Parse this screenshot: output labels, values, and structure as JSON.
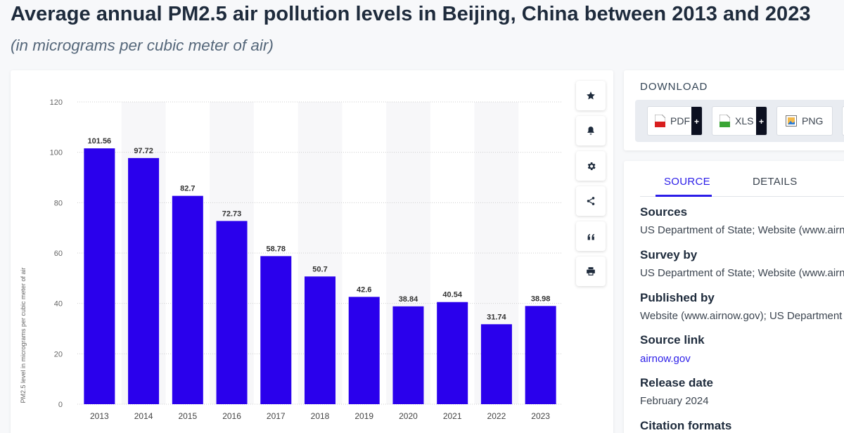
{
  "header": {
    "title": "Average annual PM2.5 air pollution levels in Beijing, China between 2013 and 2023",
    "subtitle": "(in micrograms per cubic meter of air)"
  },
  "chart_data": {
    "type": "bar",
    "categories": [
      "2013",
      "2014",
      "2015",
      "2016",
      "2017",
      "2018",
      "2019",
      "2020",
      "2021",
      "2022",
      "2023"
    ],
    "values": [
      101.56,
      97.72,
      82.7,
      72.73,
      58.78,
      50.7,
      42.6,
      38.84,
      40.54,
      31.74,
      38.98
    ],
    "value_labels": [
      "101.56",
      "97.72",
      "82.7",
      "72.73",
      "58.78",
      "50.7",
      "42.6",
      "38.84",
      "40.54",
      "31.74",
      "38.98"
    ],
    "ylabel": "PM2.5 level in micrograms per cubic meter of air",
    "ylim": [
      0,
      120
    ],
    "yticks": [
      "0",
      "20",
      "40",
      "60",
      "80",
      "100",
      "120"
    ],
    "grid": true,
    "bar_color": "#2a00ec"
  },
  "toolbar": {
    "buttons": [
      {
        "name": "favorite-button",
        "icon": "star-icon"
      },
      {
        "name": "notification-button",
        "icon": "bell-icon"
      },
      {
        "name": "settings-button",
        "icon": "gear-icon"
      },
      {
        "name": "share-button",
        "icon": "share-icon"
      },
      {
        "name": "cite-button",
        "icon": "quote-icon"
      },
      {
        "name": "print-button",
        "icon": "printer-icon"
      }
    ]
  },
  "download": {
    "title": "DOWNLOAD",
    "pdf_label": "PDF",
    "xls_label": "XLS",
    "png_label": "PNG",
    "plus": "+"
  },
  "source_panel": {
    "tabs": {
      "source": "SOURCE",
      "details": "DETAILS"
    },
    "sources_heading": "Sources",
    "sources_value": "US Department of State; Website (www.airnow.gov)",
    "survey_heading": "Survey by",
    "survey_value": "US Department of State; Website (www.airnow.gov)",
    "published_heading": "Published by",
    "published_value": "Website (www.airnow.gov); US Department of State",
    "link_heading": "Source link",
    "link_value": "airnow.gov",
    "release_heading": "Release date",
    "release_value": "February 2024",
    "citation_heading": "Citation formats"
  }
}
